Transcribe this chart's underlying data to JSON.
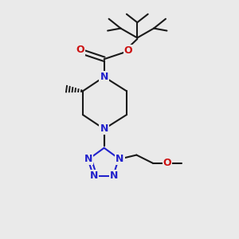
{
  "bg_color": "#eaeaea",
  "bond_color": "#1a1a1a",
  "N_color": "#2222cc",
  "O_color": "#cc1111",
  "line_width": 1.5,
  "figsize": [
    3.0,
    3.0
  ],
  "dpi": 100,
  "xlim": [
    0,
    10
  ],
  "ylim": [
    0,
    10
  ]
}
